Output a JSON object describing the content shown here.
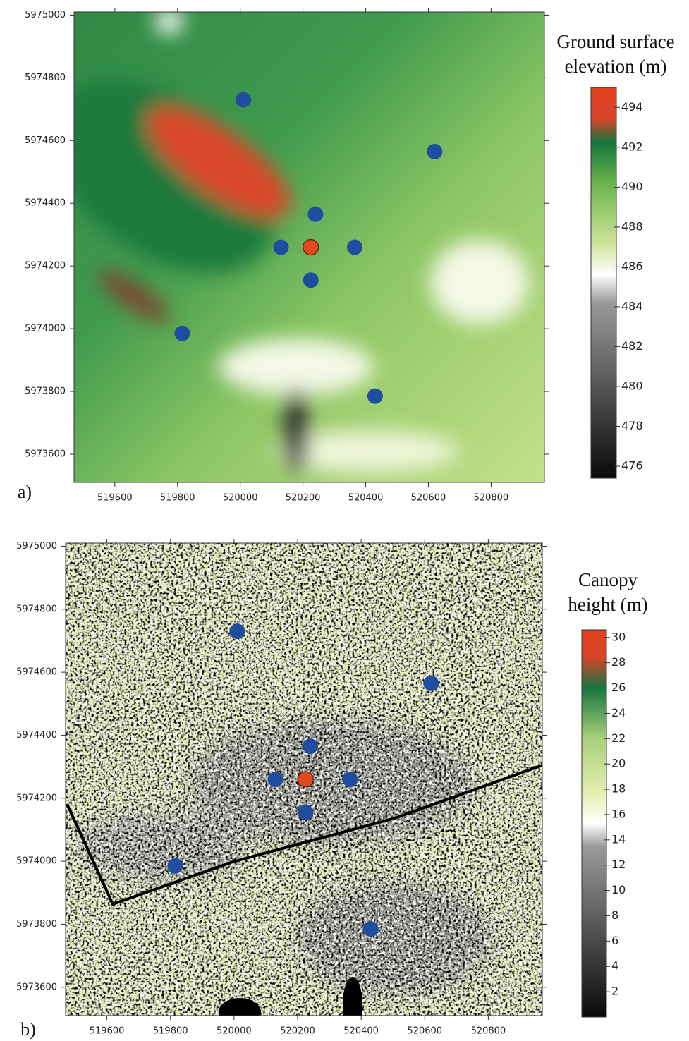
{
  "chart_data": [
    {
      "type": "scatter",
      "panel_label": "a)",
      "colorbar_title": [
        "Ground surface",
        "elevation (m)"
      ],
      "colorbar_lim": [
        475.4,
        495
      ],
      "colorbar_ticks": [
        476,
        478,
        480,
        482,
        484,
        486,
        488,
        490,
        492,
        494
      ],
      "xlim": [
        519470,
        520970
      ],
      "ylim": [
        5973510,
        5975010
      ],
      "xticks": [
        519600,
        519800,
        520000,
        520200,
        520400,
        520600,
        520800
      ],
      "yticks": [
        5973600,
        5973800,
        5974000,
        5974200,
        5974400,
        5974600,
        5974800,
        5975000
      ],
      "series": [
        {
          "color": "#1f4ea0",
          "x": [
            520010,
            520620,
            520240,
            520130,
            520365,
            520225,
            519815,
            520430
          ],
          "values": [
            5974730,
            5974565,
            5974365,
            5974260,
            5974260,
            5974155,
            5973985,
            5973785
          ]
        },
        {
          "color": "#e04a1e",
          "x": [
            520225
          ],
          "values": [
            5974260
          ]
        }
      ]
    },
    {
      "type": "scatter",
      "panel_label": "b)",
      "colorbar_title": [
        "Canopy",
        "height (m)"
      ],
      "colorbar_lim": [
        0,
        30.6
      ],
      "colorbar_ticks": [
        2,
        4,
        6,
        8,
        10,
        12,
        14,
        16,
        18,
        20,
        22,
        24,
        26,
        28,
        30
      ],
      "xlim": [
        519470,
        520970
      ],
      "ylim": [
        5973510,
        5975010
      ],
      "xticks": [
        519600,
        519800,
        520000,
        520200,
        520400,
        520600,
        520800
      ],
      "yticks": [
        5973600,
        5973800,
        5974000,
        5974200,
        5974400,
        5974600,
        5974800,
        5975000
      ],
      "series": [
        {
          "color": "#1f4ea0",
          "x": [
            520010,
            520620,
            520240,
            520130,
            520365,
            520225,
            519815,
            520430
          ],
          "values": [
            5974730,
            5974565,
            5974365,
            5974260,
            5974260,
            5974155,
            5973985,
            5973785
          ]
        },
        {
          "color": "#e04a1e",
          "x": [
            520225
          ],
          "values": [
            5974260
          ]
        }
      ]
    }
  ]
}
